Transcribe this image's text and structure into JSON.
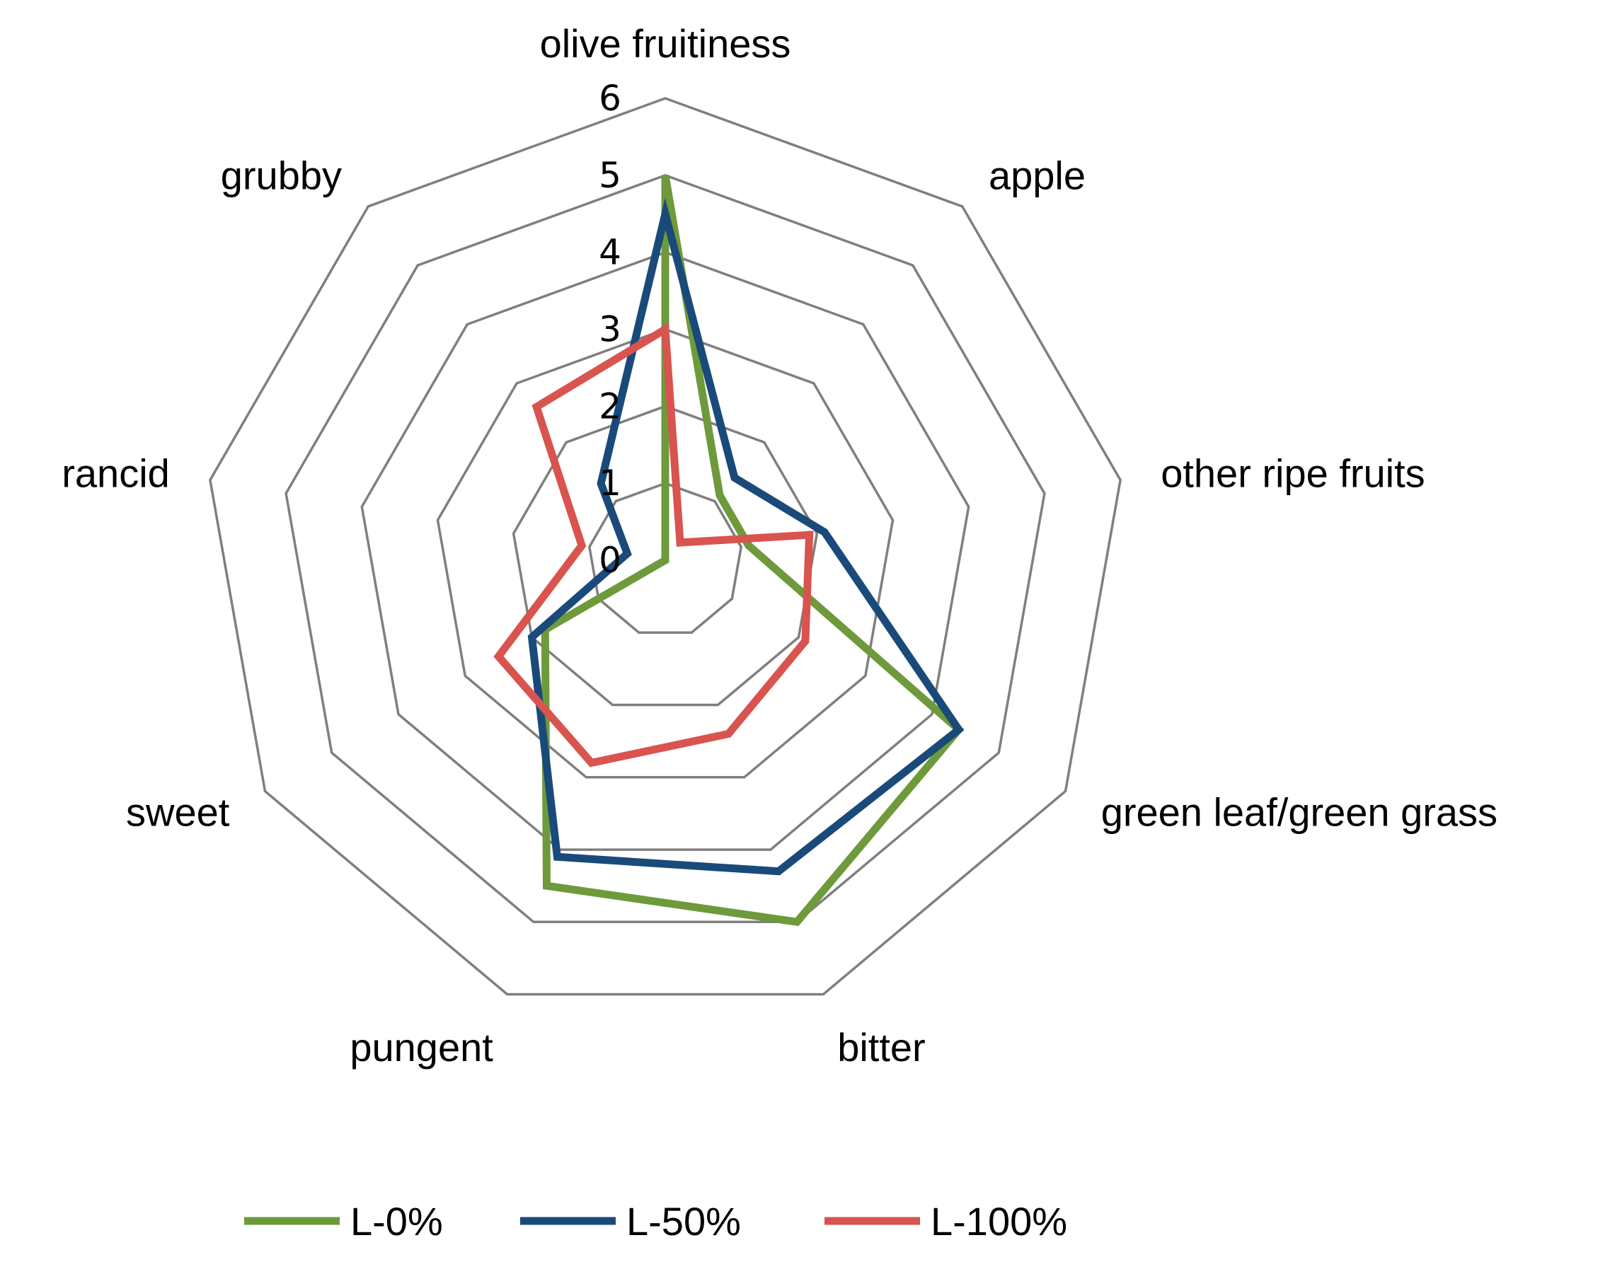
{
  "chart_data": {
    "type": "radar",
    "title": "",
    "categories": [
      "olive fruitiness",
      "apple",
      "other ripe fruits",
      "green leaf/green grass",
      "bitter",
      "pungent",
      "sweet",
      "rancid",
      "grubby"
    ],
    "ticks": [
      "0",
      "1",
      "2",
      "3",
      "4",
      "5",
      "6"
    ],
    "rlim": [
      0,
      6
    ],
    "grid": true,
    "legend_position": "bottom",
    "series": [
      {
        "name": "L-0%",
        "color": "#6e9a3b",
        "values": [
          5.0,
          1.1,
          1.1,
          4.4,
          5.0,
          4.5,
          1.8,
          0,
          0
        ]
      },
      {
        "name": "L-50%",
        "color": "#1a4a7a",
        "values": [
          4.5,
          1.4,
          2.1,
          4.4,
          4.3,
          4.1,
          2.0,
          0.5,
          1.3
        ]
      },
      {
        "name": "L-100%",
        "color": "#d9534f",
        "values": [
          3.0,
          0.3,
          1.9,
          2.1,
          2.4,
          2.8,
          2.5,
          1.1,
          2.6
        ]
      }
    ]
  }
}
